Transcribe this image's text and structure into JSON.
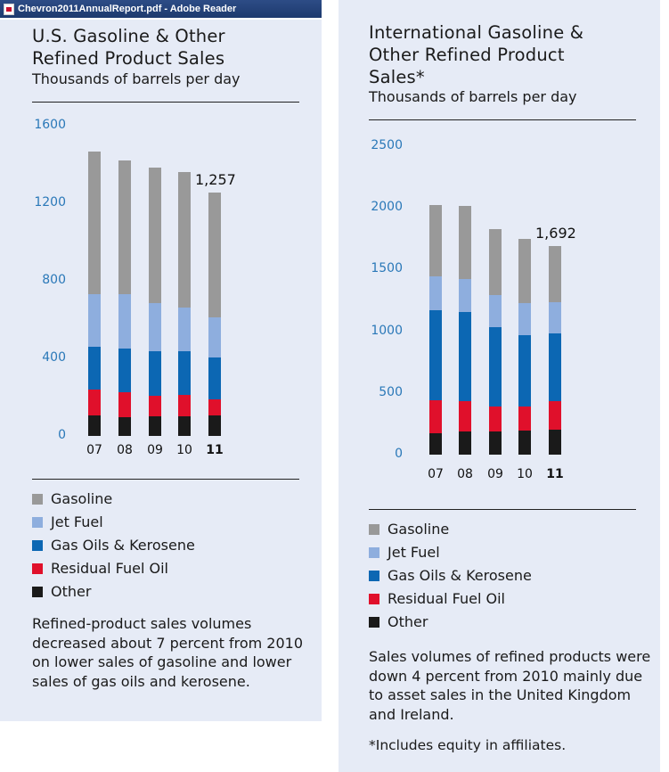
{
  "window": {
    "title": "Chevron2011AnnualReport.pdf - Adobe Reader"
  },
  "colors": {
    "gasoline": "#999999",
    "jet_fuel": "#8eaede",
    "gas_oils_kerosene": "#0c67b3",
    "residual_fuel_oil": "#e0102b",
    "other": "#1a1a1a",
    "axis_tick_text": "#2a78b8",
    "panel_bg": "#e6ebf6"
  },
  "chart_data": [
    {
      "type": "bar",
      "stacked": true,
      "title_lines": [
        "U.S. Gasoline & Other",
        "Refined Product Sales"
      ],
      "subtitle": "Thousands of barrels per day",
      "categories": [
        "07",
        "08",
        "09",
        "10",
        "11"
      ],
      "highlight_category": "11",
      "yticks": [
        "0",
        "400",
        "800",
        "1200",
        "1600"
      ],
      "ylim": [
        0,
        1600
      ],
      "series": [
        {
          "name": "Other",
          "key": "other",
          "values": [
            105,
            95,
            100,
            100,
            105
          ]
        },
        {
          "name": "Residual Fuel Oil",
          "key": "residual_fuel_oil",
          "values": [
            135,
            130,
            105,
            110,
            85
          ]
        },
        {
          "name": "Gas Oils & Kerosene",
          "key": "gas_oils_kerosene",
          "values": [
            220,
            225,
            230,
            225,
            215
          ]
        },
        {
          "name": "Jet Fuel",
          "key": "jet_fuel",
          "values": [
            270,
            280,
            250,
            225,
            205
          ]
        },
        {
          "name": "Gasoline",
          "key": "gasoline",
          "values": [
            735,
            690,
            700,
            700,
            647
          ]
        }
      ],
      "annotation": {
        "category": "11",
        "text": "1,257"
      },
      "note": "Refined-product sales volumes decreased about 7 percent from 2010 on lower sales of gasoline and lower sales of gas oils and kerosene."
    },
    {
      "type": "bar",
      "stacked": true,
      "title_lines": [
        "International Gasoline &",
        "Other Refined Product",
        "Sales*"
      ],
      "subtitle": "Thousands of barrels per day",
      "categories": [
        "07",
        "08",
        "09",
        "10",
        "11"
      ],
      "highlight_category": "11",
      "yticks": [
        "0",
        "500",
        "1000",
        "1500",
        "2000",
        "2500"
      ],
      "ylim": [
        0,
        2500
      ],
      "series": [
        {
          "name": "Other",
          "key": "other",
          "values": [
            175,
            190,
            185,
            195,
            205
          ]
        },
        {
          "name": "Residual Fuel Oil",
          "key": "residual_fuel_oil",
          "values": [
            265,
            245,
            205,
            195,
            230
          ]
        },
        {
          "name": "Gas Oils & Kerosene",
          "key": "gas_oils_kerosene",
          "values": [
            730,
            720,
            645,
            580,
            545
          ]
        },
        {
          "name": "Jet Fuel",
          "key": "jet_fuel",
          "values": [
            275,
            270,
            255,
            260,
            255
          ]
        },
        {
          "name": "Gasoline",
          "key": "gasoline",
          "values": [
            575,
            590,
            540,
            520,
            457
          ]
        }
      ],
      "annotation": {
        "category": "11",
        "text": "1,692"
      },
      "note": "Sales volumes of refined products were down 4 percent from 2010 mainly due to asset sales in the United Kingdom and Ireland.",
      "footnote": "*Includes equity in affiliates."
    }
  ],
  "legend": [
    "Gasoline",
    "Jet Fuel",
    "Gas Oils & Kerosene",
    "Residual Fuel Oil",
    "Other"
  ],
  "legend_keys": [
    "gasoline",
    "jet_fuel",
    "gas_oils_kerosene",
    "residual_fuel_oil",
    "other"
  ]
}
